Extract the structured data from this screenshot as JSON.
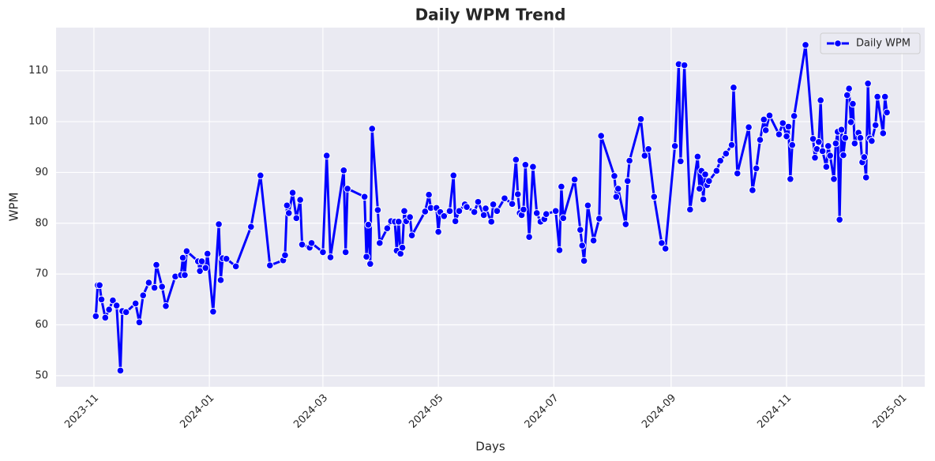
{
  "chart_data": {
    "type": "line",
    "title": "Daily WPM Trend",
    "x_label": "Days",
    "y_label": "WPM",
    "x": [
      "2023-11-02",
      "2023-11-03",
      "2023-11-04",
      "2023-11-05",
      "2023-11-07",
      "2023-11-09",
      "2023-11-11",
      "2023-11-13",
      "2023-11-15",
      "2023-11-16",
      "2023-11-18",
      "2023-11-23",
      "2023-11-25",
      "2023-11-27",
      "2023-11-30",
      "2023-12-03",
      "2023-12-04",
      "2023-12-07",
      "2023-12-09",
      "2023-12-14",
      "2023-12-17",
      "2023-12-18",
      "2023-12-19",
      "2023-12-20",
      "2023-12-26",
      "2023-12-27",
      "2023-12-28",
      "2023-12-30",
      "2023-12-31",
      "2024-01-03",
      "2024-01-06",
      "2024-01-07",
      "2024-01-08",
      "2024-01-10",
      "2024-01-15",
      "2024-01-23",
      "2024-01-28",
      "2024-02-02",
      "2024-02-09",
      "2024-02-10",
      "2024-02-11",
      "2024-02-12",
      "2024-02-14",
      "2024-02-16",
      "2024-02-18",
      "2024-02-19",
      "2024-02-23",
      "2024-02-24",
      "2024-03-01",
      "2024-03-03",
      "2024-03-05",
      "2024-03-12",
      "2024-03-13",
      "2024-03-14",
      "2024-03-23",
      "2024-03-24",
      "2024-03-25",
      "2024-03-26",
      "2024-03-27",
      "2024-03-30",
      "2024-03-31",
      "2024-04-04",
      "2024-04-06",
      "2024-04-08",
      "2024-04-09",
      "2024-04-10",
      "2024-04-11",
      "2024-04-12",
      "2024-04-13",
      "2024-04-14",
      "2024-04-16",
      "2024-04-17",
      "2024-04-24",
      "2024-04-26",
      "2024-04-27",
      "2024-04-30",
      "2024-05-01",
      "2024-05-02",
      "2024-05-04",
      "2024-05-07",
      "2024-05-09",
      "2024-05-10",
      "2024-05-12",
      "2024-05-15",
      "2024-05-16",
      "2024-05-20",
      "2024-05-22",
      "2024-05-25",
      "2024-05-26",
      "2024-05-29",
      "2024-05-30",
      "2024-06-01",
      "2024-06-05",
      "2024-06-09",
      "2024-06-11",
      "2024-06-12",
      "2024-06-13",
      "2024-06-14",
      "2024-06-15",
      "2024-06-16",
      "2024-06-18",
      "2024-06-20",
      "2024-06-22",
      "2024-06-24",
      "2024-06-26",
      "2024-06-27",
      "2024-07-02",
      "2024-07-04",
      "2024-07-05",
      "2024-07-06",
      "2024-07-12",
      "2024-07-15",
      "2024-07-16",
      "2024-07-17",
      "2024-07-19",
      "2024-07-22",
      "2024-07-25",
      "2024-07-26",
      "2024-08-02",
      "2024-08-03",
      "2024-08-04",
      "2024-08-08",
      "2024-08-09",
      "2024-08-10",
      "2024-08-16",
      "2024-08-18",
      "2024-08-20",
      "2024-08-23",
      "2024-08-27",
      "2024-08-29",
      "2024-09-03",
      "2024-09-05",
      "2024-09-06",
      "2024-09-08",
      "2024-09-11",
      "2024-09-15",
      "2024-09-16",
      "2024-09-17",
      "2024-09-18",
      "2024-09-19",
      "2024-09-20",
      "2024-09-21",
      "2024-09-25",
      "2024-09-27",
      "2024-09-30",
      "2024-10-03",
      "2024-10-04",
      "2024-10-06",
      "2024-10-12",
      "2024-10-14",
      "2024-10-16",
      "2024-10-18",
      "2024-10-20",
      "2024-10-21",
      "2024-10-23",
      "2024-10-28",
      "2024-10-30",
      "2024-11-01",
      "2024-11-02",
      "2024-11-03",
      "2024-11-04",
      "2024-11-05",
      "2024-11-11",
      "2024-11-15",
      "2024-11-16",
      "2024-11-17",
      "2024-11-18",
      "2024-11-19",
      "2024-11-20",
      "2024-11-22",
      "2024-11-23",
      "2024-11-24",
      "2024-11-26",
      "2024-11-27",
      "2024-11-28",
      "2024-11-29",
      "2024-11-30",
      "2024-12-01",
      "2024-12-02",
      "2024-12-03",
      "2024-12-04",
      "2024-12-05",
      "2024-12-06",
      "2024-12-07",
      "2024-12-09",
      "2024-12-10",
      "2024-12-11",
      "2024-12-12",
      "2024-12-13",
      "2024-12-14",
      "2024-12-15",
      "2024-12-16",
      "2024-12-18",
      "2024-12-19",
      "2024-12-22",
      "2024-12-23",
      "2024-12-24"
    ],
    "series": [
      {
        "name": "Daily WPM",
        "color": "#0000ff",
        "values": [
          61.7,
          67.8,
          67.8,
          65,
          61.4,
          63,
          64.8,
          63.8,
          51,
          62.7,
          62.5,
          64.2,
          60.5,
          65.8,
          68.3,
          67.3,
          71.8,
          67.5,
          63.7,
          69.5,
          69.8,
          73.2,
          69.8,
          74.5,
          72.5,
          70.6,
          72.5,
          71.2,
          74,
          62.6,
          79.8,
          68.8,
          73.1,
          73,
          71.5,
          79.3,
          89.4,
          71.7,
          72.7,
          73.7,
          83.5,
          82,
          86,
          81,
          84.6,
          75.8,
          75.2,
          76.1,
          74.3,
          93.3,
          73.3,
          90.4,
          74.3,
          86.8,
          85.2,
          73.4,
          79.7,
          72,
          98.6,
          82.6,
          76.1,
          79,
          80.4,
          80.3,
          74.6,
          80.3,
          74,
          75.2,
          82.4,
          80.4,
          81.2,
          77.6,
          82.3,
          85.6,
          83,
          83,
          78.3,
          82.2,
          81.4,
          82.4,
          89.4,
          80.4,
          82.4,
          83.7,
          83.2,
          82.2,
          84.2,
          81.6,
          82.9,
          80.3,
          83.7,
          82.4,
          84.9,
          83.8,
          92.5,
          85.7,
          82,
          81.6,
          82.7,
          91.5,
          77.3,
          91.1,
          82,
          80.3,
          80.8,
          81.8,
          82.4,
          74.7,
          87.2,
          81,
          88.6,
          78.7,
          75.6,
          72.6,
          83.5,
          76.6,
          80.9,
          97.2,
          89.3,
          85.2,
          86.8,
          79.8,
          88.3,
          92.3,
          100.5,
          93.3,
          94.6,
          85.2,
          76.1,
          75,
          95.2,
          111.3,
          92.2,
          111.1,
          82.7,
          93.1,
          86.8,
          90.3,
          84.7,
          89.6,
          87.5,
          88.3,
          90.3,
          92.3,
          93.7,
          95.4,
          106.7,
          89.8,
          98.9,
          86.5,
          90.8,
          96.4,
          100.4,
          98.3,
          101.2,
          97.5,
          99.7,
          97.1,
          99,
          88.7,
          95.4,
          101.1,
          115.1,
          96.6,
          92.9,
          94.6,
          96,
          104.2,
          94.2,
          91.1,
          95.2,
          93.3,
          88.7,
          95.7,
          98,
          80.7,
          98.4,
          93.4,
          96.8,
          105.2,
          106.5,
          99.9,
          103.5,
          95.7,
          97.8,
          96.8,
          92,
          93,
          89,
          107.5,
          96.7,
          96.2,
          99.3,
          104.9,
          97.7,
          104.9,
          101.8
        ]
      }
    ],
    "xlim": [
      "2023-10-12",
      "2025-01-13"
    ],
    "xticks": [
      {
        "value": "2023-11-01",
        "label": "2023-11"
      },
      {
        "value": "2024-01-01",
        "label": "2024-01"
      },
      {
        "value": "2024-03-01",
        "label": "2024-03"
      },
      {
        "value": "2024-05-01",
        "label": "2024-05"
      },
      {
        "value": "2024-07-01",
        "label": "2024-07"
      },
      {
        "value": "2024-09-01",
        "label": "2024-09"
      },
      {
        "value": "2024-11-01",
        "label": "2024-11"
      },
      {
        "value": "2025-01-01",
        "label": "2025-01"
      }
    ],
    "ylim": [
      47.8,
      118.5
    ],
    "yticks": [
      50,
      60,
      70,
      80,
      90,
      100,
      110
    ],
    "grid": true,
    "legend": "upper right"
  }
}
